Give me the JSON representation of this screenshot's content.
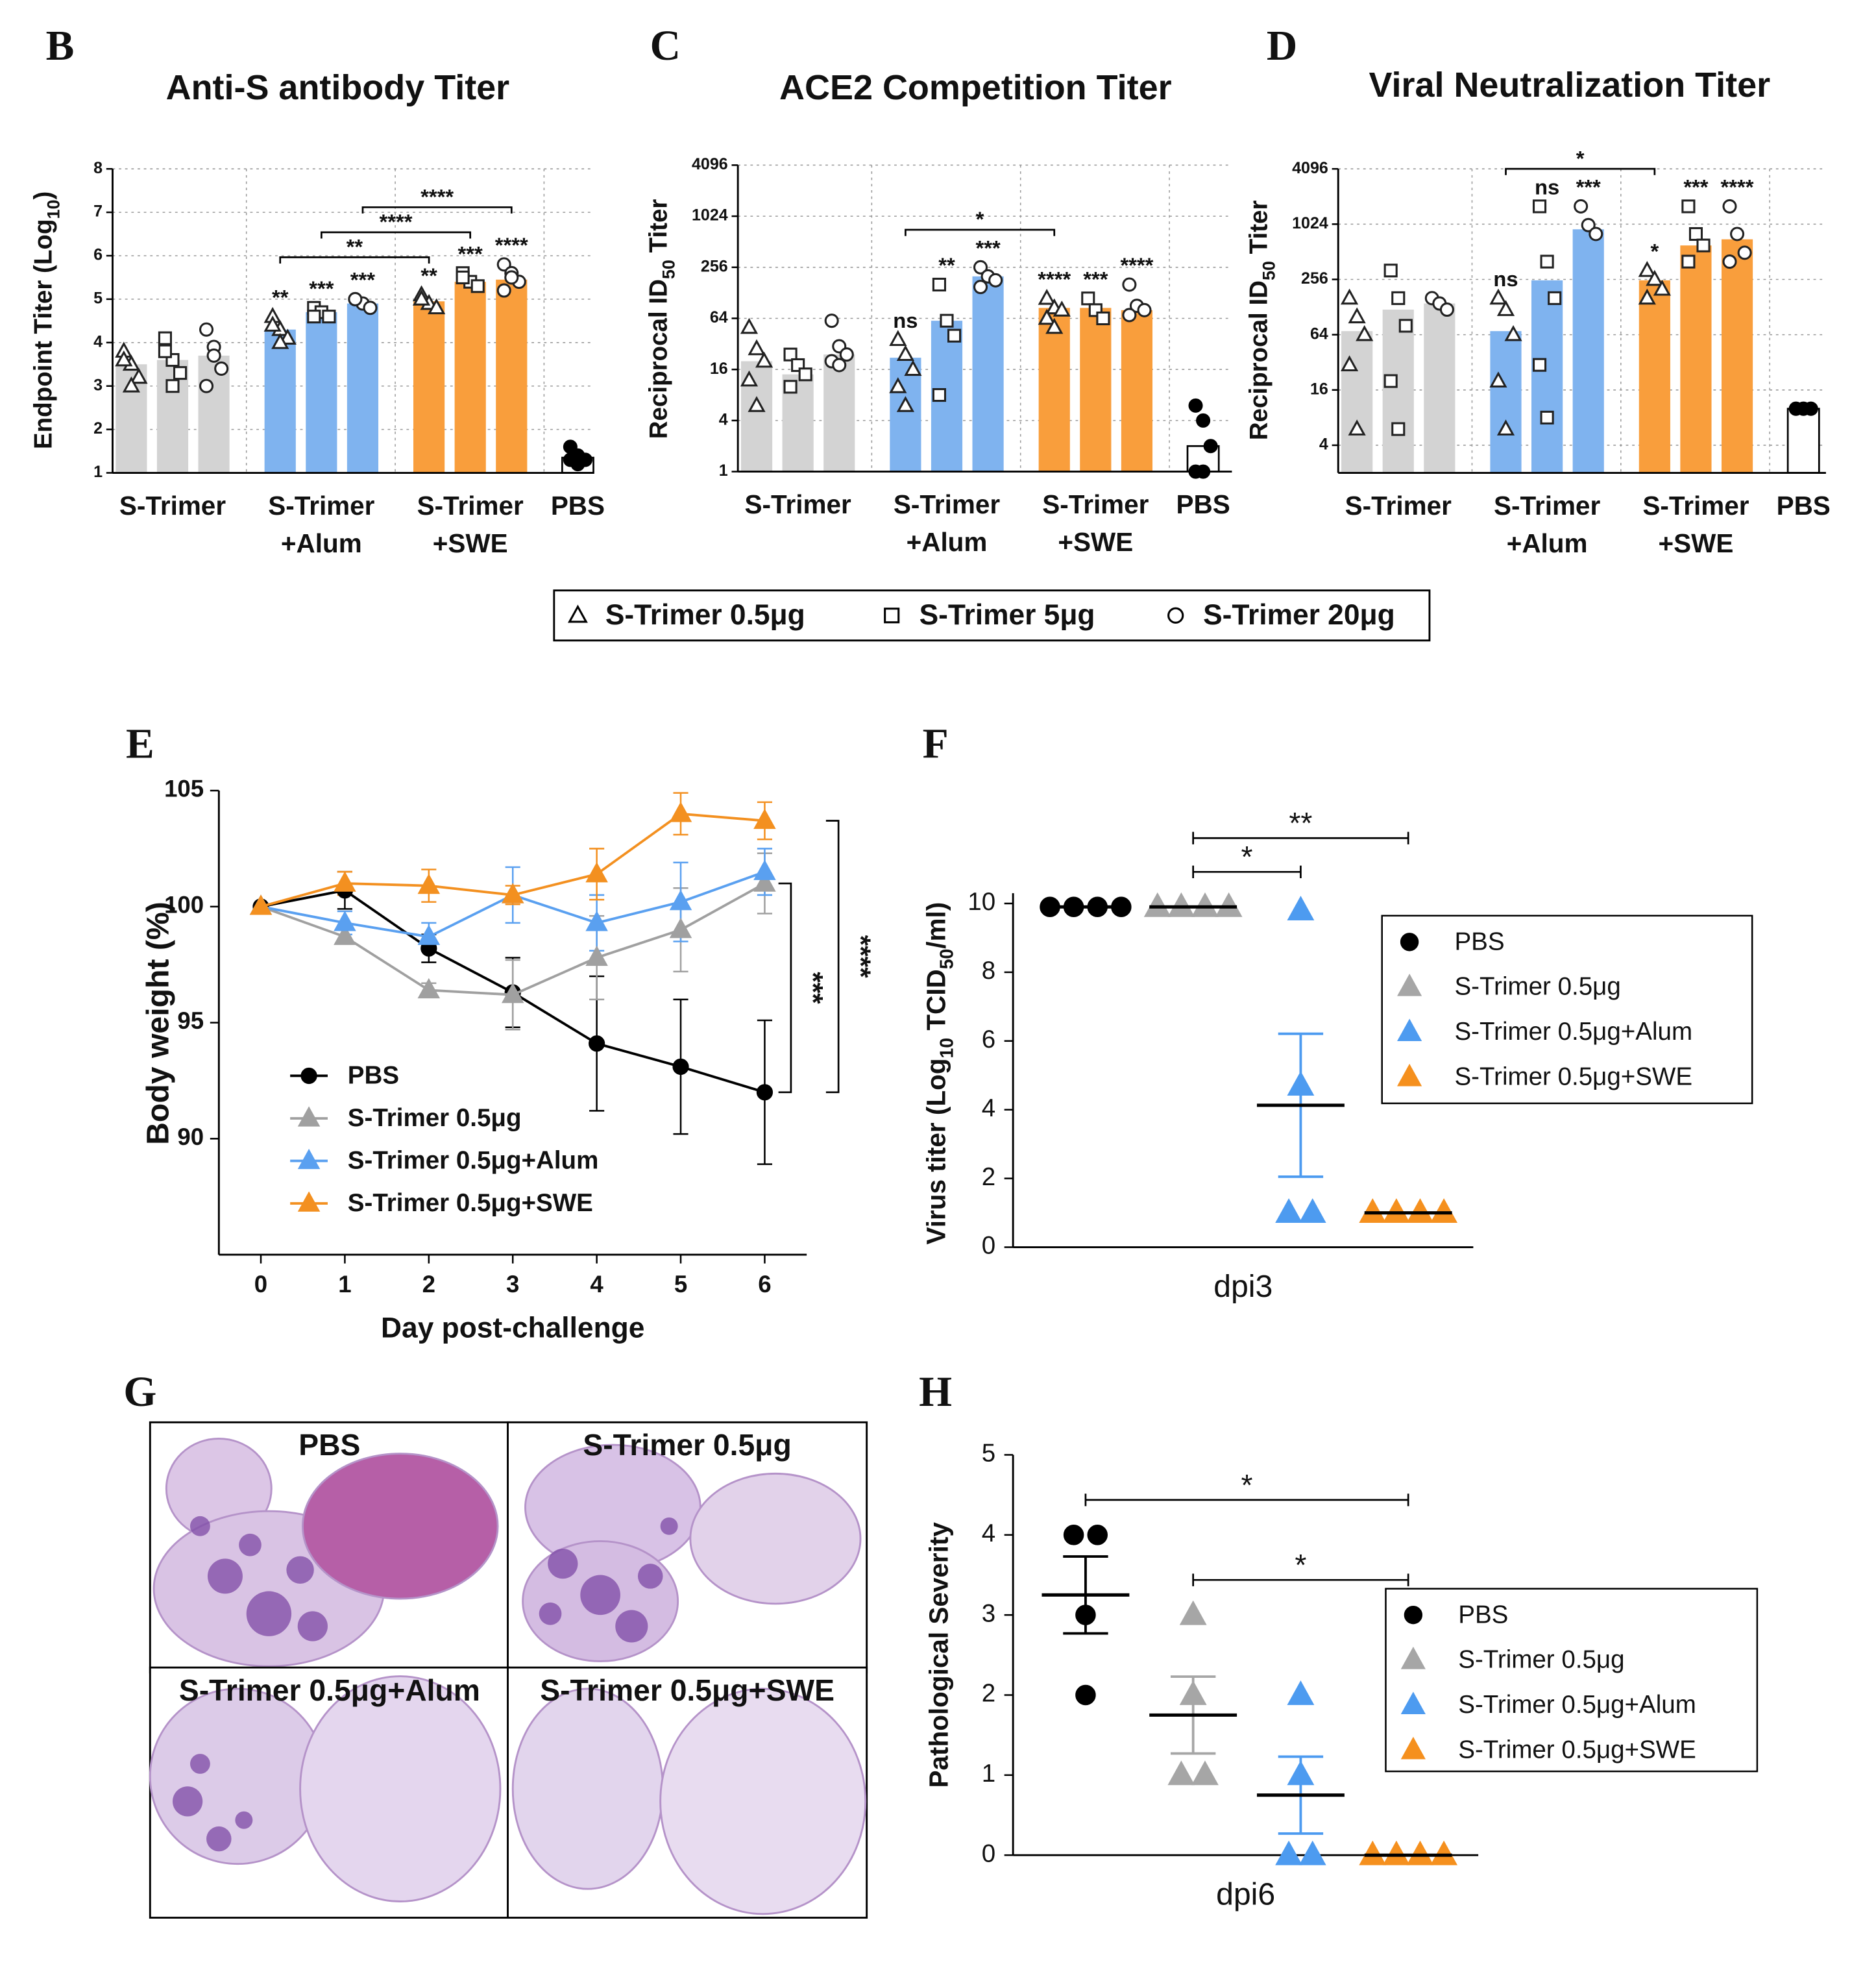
{
  "chart_data": [
    {
      "panel": "B",
      "type": "bar",
      "title": "Anti-S antibody Titer",
      "ylabel": [
        "Endpoint Titer (Log",
        "10",
        ")"
      ],
      "ylim": [
        1,
        8
      ],
      "yticks": [
        1,
        2,
        3,
        4,
        5,
        6,
        7,
        8
      ],
      "grid": true,
      "categories": [
        [
          "S-Trimer"
        ],
        [
          "S-Trimer",
          "+Alum"
        ],
        [
          "S-Trimer",
          "+SWE"
        ],
        [
          "PBS"
        ]
      ],
      "category_colors": [
        "#d3d3d3",
        "#7fb3ef",
        "#f99e3c",
        "#ffffff"
      ],
      "series": [
        {
          "name": "S-Trimer 0.5μg",
          "marker": "triangle",
          "values": [
            3.5,
            4.3,
            4.95,
            null
          ],
          "points": [
            [
              3.8,
              3.5,
              3.2,
              3.6,
              3.0
            ],
            [
              4.6,
              4.3,
              4.1,
              4.4,
              4.0
            ],
            [
              5.1,
              4.9,
              4.8,
              5.0
            ],
            null
          ],
          "stars": [
            null,
            "**",
            "**",
            null
          ]
        },
        {
          "name": "S-Trimer 5μg",
          "marker": "square",
          "values": [
            3.6,
            4.7,
            5.4,
            null
          ],
          "points": [
            [
              4.1,
              3.6,
              3.3,
              3.8,
              3.0
            ],
            [
              4.8,
              4.7,
              4.6,
              4.6
            ],
            [
              5.6,
              5.4,
              5.3,
              5.5
            ],
            null
          ],
          "stars": [
            null,
            "***",
            "***",
            null
          ]
        },
        {
          "name": "S-Trimer 20μg",
          "marker": "circle",
          "values": [
            3.7,
            4.9,
            5.45,
            null
          ],
          "points": [
            [
              4.3,
              3.9,
              3.4,
              3.0,
              3.7
            ],
            [
              5.0,
              4.9,
              4.8,
              5.0
            ],
            [
              5.8,
              5.6,
              5.4,
              5.2,
              5.5
            ],
            null
          ],
          "stars": [
            null,
            "***",
            "****",
            null
          ]
        },
        {
          "marker": "dot",
          "values": [
            null,
            null,
            null,
            1.35
          ],
          "points": [
            null,
            null,
            null,
            [
              1.6,
              1.4,
              1.3,
              1.3,
              1.2
            ]
          ]
        }
      ],
      "brackets": [
        {
          "series": 0,
          "categories": [
            1,
            2
          ],
          "label": "**"
        },
        {
          "series": 1,
          "categories": [
            1,
            2
          ],
          "label": "****"
        },
        {
          "series": 2,
          "categories": [
            1,
            2
          ],
          "label": "****"
        }
      ]
    },
    {
      "panel": "C",
      "type": "bar",
      "title": "ACE2 Competition Titer",
      "ylabel": [
        "Reciprocal ID",
        "50",
        " Titer"
      ],
      "log_scale": true,
      "ylim": [
        1,
        4096
      ],
      "yticks": [
        1,
        4,
        16,
        64,
        256,
        1024,
        4096
      ],
      "grid": true,
      "categories": [
        [
          "S-Trimer"
        ],
        [
          "S-Trimer",
          "+Alum"
        ],
        [
          "S-Trimer",
          "+SWE"
        ],
        [
          "PBS"
        ]
      ],
      "category_colors": [
        "#d3d3d3",
        "#7fb3ef",
        "#f99e3c",
        "#ffffff"
      ],
      "series": [
        {
          "marker": "triangle",
          "values": [
            20,
            22,
            85,
            null
          ],
          "points": [
            [
              50,
              28,
              20,
              12,
              6
            ],
            [
              36,
              24,
              16,
              10,
              6
            ],
            [
              110,
              85,
              80,
              64,
              50
            ],
            null
          ],
          "stars": [
            null,
            "ns",
            "****",
            null
          ]
        },
        {
          "marker": "square",
          "values": [
            14,
            60,
            85,
            null
          ],
          "points": [
            [
              24,
              18,
              14,
              10
            ],
            [
              160,
              60,
              40,
              8
            ],
            [
              110,
              80,
              64
            ],
            null
          ],
          "stars": [
            null,
            "**",
            "***",
            null
          ]
        },
        {
          "marker": "circle",
          "values": [
            24,
            200,
            80,
            null
          ],
          "points": [
            [
              60,
              30,
              24,
              20,
              18
            ],
            [
              256,
              200,
              180,
              150
            ],
            [
              160,
              90,
              80,
              70
            ],
            null
          ],
          "stars": [
            null,
            "***",
            "****",
            null
          ]
        },
        {
          "marker": "dot",
          "values": [
            null,
            null,
            null,
            2
          ],
          "points": [
            null,
            null,
            null,
            [
              6,
              4,
              2,
              1,
              1
            ]
          ]
        }
      ],
      "brackets": [
        {
          "series": 0,
          "categories": [
            1,
            2
          ],
          "label": "*"
        }
      ]
    },
    {
      "panel": "D",
      "type": "bar",
      "title": "Viral Neutralization Titer",
      "ylabel": [
        "Reciprocal ID",
        "50",
        " Titer"
      ],
      "log_scale": true,
      "ylim": [
        2,
        4096
      ],
      "yticks": [
        4,
        16,
        64,
        256,
        1024,
        4096
      ],
      "grid": true,
      "categories": [
        [
          "S-Trimer"
        ],
        [
          "S-Trimer",
          "+Alum"
        ],
        [
          "S-Trimer",
          "+SWE"
        ],
        [
          "PBS"
        ]
      ],
      "category_colors": [
        "#d3d3d3",
        "#7fb3ef",
        "#f99e3c",
        "#ffffff"
      ],
      "series": [
        {
          "marker": "triangle",
          "values": [
            70,
            70,
            250,
            null
          ],
          "points": [
            [
              160,
              100,
              64,
              30,
              6
            ],
            [
              160,
              120,
              64,
              20,
              6
            ],
            [
              320,
              256,
              200,
              160
            ],
            null
          ],
          "stars": [
            null,
            "ns",
            "*",
            null
          ]
        },
        {
          "marker": "square",
          "values": [
            120,
            250,
            600,
            null
          ],
          "points": [
            [
              320,
              160,
              80,
              20,
              6
            ],
            [
              1600,
              400,
              160,
              30,
              8
            ],
            [
              1600,
              800,
              600,
              400
            ],
            null
          ],
          "stars": [
            null,
            "ns",
            "***",
            null
          ]
        },
        {
          "marker": "circle",
          "values": [
            140,
            900,
            700,
            null
          ],
          "points": [
            [
              160,
              140,
              120
            ],
            [
              1600,
              1000,
              800
            ],
            [
              1600,
              800,
              500,
              400
            ],
            null
          ],
          "stars": [
            null,
            "***",
            "****",
            null
          ]
        },
        {
          "marker": "dot",
          "values": [
            null,
            null,
            null,
            10
          ],
          "points": [
            null,
            null,
            null,
            [
              10,
              10,
              10
            ]
          ]
        }
      ],
      "brackets": [
        {
          "series": 0,
          "categories": [
            1,
            2
          ],
          "label": "*"
        }
      ]
    },
    {
      "panel": "E",
      "type": "line",
      "xlabel": "Day post-challenge",
      "ylabel": [
        "Body weight (%)"
      ],
      "x": [
        0,
        1,
        2,
        3,
        4,
        5,
        6
      ],
      "xlim": [
        -0.5,
        6.5
      ],
      "xticks": [
        0,
        1,
        2,
        3,
        4,
        5,
        6
      ],
      "ylim": [
        85,
        105
      ],
      "yticks": [
        90,
        95,
        100,
        105
      ],
      "series": [
        {
          "name": "PBS",
          "color": "#000000",
          "marker": "circle",
          "values": [
            100,
            100.7,
            98.2,
            96.3,
            94.1,
            93.1,
            92.0
          ],
          "errors": [
            0,
            0.8,
            0.6,
            1.5,
            2.9,
            2.9,
            3.1
          ]
        },
        {
          "name": "S-Trimer 0.5μg",
          "color": "#a0a0a0",
          "marker": "triangle",
          "values": [
            100,
            98.7,
            96.4,
            96.2,
            97.8,
            99.0,
            101.0
          ],
          "errors": [
            0,
            0.3,
            0.3,
            1.5,
            1.8,
            1.8,
            1.3
          ]
        },
        {
          "name": "S-Trimer 0.5μg+Alum",
          "color": "#5aa0f0",
          "marker": "triangle",
          "values": [
            100,
            99.3,
            98.7,
            100.5,
            99.3,
            100.2,
            101.5
          ],
          "errors": [
            0,
            0.5,
            0.6,
            1.2,
            1.2,
            1.7,
            1.0
          ]
        },
        {
          "name": "S-Trimer 0.5μg+SWE",
          "color": "#f39020",
          "marker": "triangle",
          "values": [
            100,
            101.0,
            100.9,
            100.5,
            101.4,
            104.0,
            103.7
          ],
          "errors": [
            0,
            0.5,
            0.7,
            0.4,
            1.1,
            0.9,
            0.8
          ]
        }
      ],
      "comparisons": [
        {
          "label": "***",
          "series": [
            0,
            1
          ]
        },
        {
          "label": "****",
          "series": [
            0,
            3
          ]
        }
      ]
    },
    {
      "panel": "F",
      "type": "dot",
      "xlabel": "dpi3",
      "ylabel": [
        "Virus titer (Log",
        "10",
        " TCID",
        "50",
        "/ml)"
      ],
      "ylim": [
        0,
        10.3
      ],
      "yticks": [
        0,
        2,
        4,
        6,
        8,
        10
      ],
      "series": [
        {
          "name": "PBS",
          "color": "#000000",
          "marker": "circle",
          "values": [
            9.9,
            9.9,
            9.9,
            9.9
          ],
          "mean": 9.9,
          "sem": 0
        },
        {
          "name": "S-Trimer 0.5μg",
          "color": "#a6a6a6",
          "marker": "triangle",
          "values": [
            9.9,
            9.9,
            9.9,
            9.9
          ],
          "mean": 9.9,
          "sem": 0
        },
        {
          "name": "S-Trimer 0.5μg+Alum",
          "color": "#4d9bf0",
          "marker": "triangle",
          "values": [
            9.8,
            4.7,
            1,
            1
          ],
          "mean": 4.13,
          "sem": 2.08
        },
        {
          "name": "S-Trimer 0.5μg+SWE",
          "color": "#f5901e",
          "marker": "triangle",
          "values": [
            1,
            1,
            1,
            1
          ],
          "mean": 1,
          "sem": 0
        }
      ],
      "comparisons": [
        {
          "label": "*",
          "groups": [
            1,
            2
          ]
        },
        {
          "label": "**",
          "groups": [
            1,
            3
          ]
        }
      ]
    },
    {
      "panel": "H",
      "type": "dot",
      "xlabel": "dpi6",
      "ylabel": [
        "Pathological Severity"
      ],
      "ylim": [
        0,
        5
      ],
      "yticks": [
        0,
        1,
        2,
        3,
        4,
        5
      ],
      "series": [
        {
          "name": "PBS",
          "color": "#000000",
          "marker": "circle",
          "values": [
            4,
            4,
            3,
            2
          ],
          "mean": 3.25,
          "sem": 0.48
        },
        {
          "name": "S-Trimer 0.5μg",
          "color": "#a6a6a6",
          "marker": "triangle",
          "values": [
            3,
            2,
            1,
            1
          ],
          "mean": 1.75,
          "sem": 0.48
        },
        {
          "name": "S-Trimer 0.5μg+Alum",
          "color": "#4d9bf0",
          "marker": "triangle",
          "values": [
            2,
            1,
            0,
            0
          ],
          "mean": 0.75,
          "sem": 0.48
        },
        {
          "name": "S-Trimer 0.5μg+SWE",
          "color": "#f5901e",
          "marker": "triangle",
          "values": [
            0,
            0,
            0,
            0
          ],
          "mean": 0,
          "sem": 0
        }
      ],
      "comparisons": [
        {
          "label": "*",
          "groups": [
            0,
            3
          ]
        },
        {
          "label": "*",
          "groups": [
            1,
            3
          ]
        }
      ]
    }
  ],
  "histology": {
    "panel": "G",
    "tiles": [
      "PBS",
      "S-Trimer 0.5μg",
      "S-Trimer 0.5μg+Alum",
      "S-Trimer 0.5μg+SWE"
    ]
  }
}
